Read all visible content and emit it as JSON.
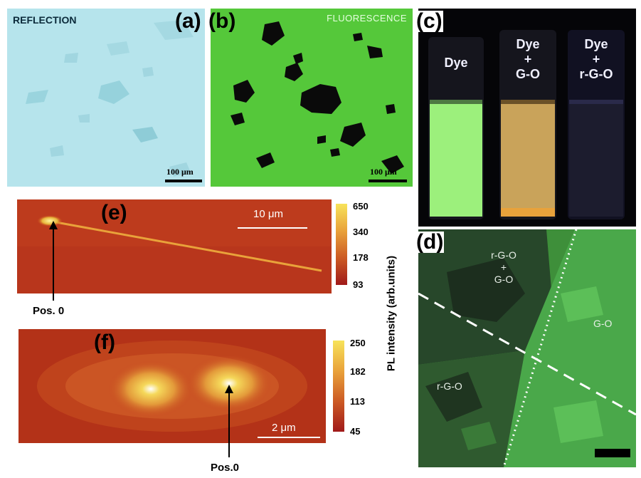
{
  "panels": {
    "a": {
      "label": "(a)",
      "mode_text": "REFLECTION",
      "scale_text": "100 μm",
      "colors": {
        "bg": "#b6e4ec",
        "flake": "#8fcdd8"
      }
    },
    "b": {
      "label": "(b)",
      "mode_text": "FLUORESCENCE",
      "scale_text": "100 μm",
      "colors": {
        "bg": "#55c83a",
        "flake": "#0a0a0a"
      }
    },
    "c": {
      "label": "(c)",
      "vials": [
        {
          "label_lines": [
            "Dye"
          ],
          "liquid": "#9cf07c"
        },
        {
          "label_lines": [
            "Dye",
            "+",
            "G-O"
          ],
          "liquid": "#c9a35a"
        },
        {
          "label_lines": [
            "Dye",
            "+",
            "r-G-O"
          ],
          "liquid": "#1c1c2e"
        }
      ]
    },
    "d": {
      "label": "(d)",
      "regions": [
        "r-G-O",
        "+",
        "G-O"
      ],
      "region_go": "G-O",
      "region_rgo": "r-G-O"
    },
    "e": {
      "label": "(e)",
      "scale_text": "10 μm",
      "pos_label": "Pos. 0",
      "colorbar_ticks": [
        "650",
        "340",
        "178",
        "93"
      ]
    },
    "f": {
      "label": "(f)",
      "scale_text": "2 μm",
      "pos_label": "Pos.0",
      "colorbar_ticks": [
        "250",
        "182",
        "113",
        "45"
      ]
    }
  },
  "colorbar_label": "PL  intensity  (arb.units)"
}
